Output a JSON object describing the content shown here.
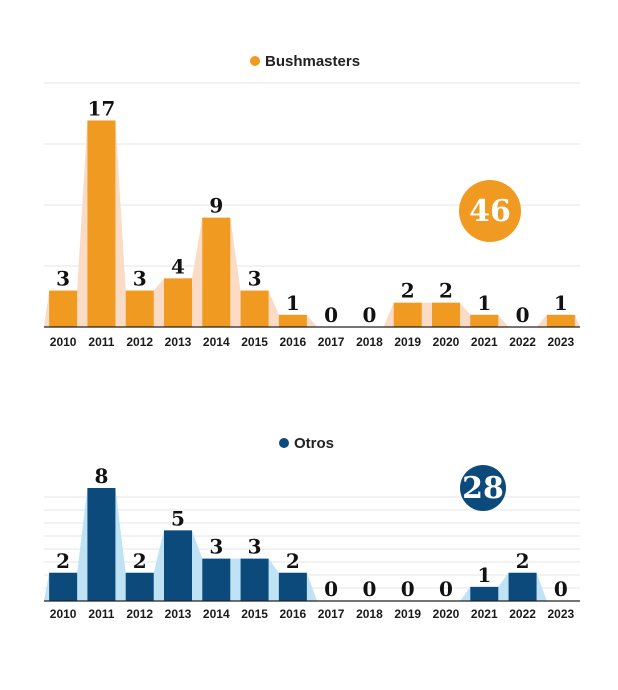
{
  "chart_data": [
    {
      "type": "bar",
      "legend": "Bushmasters",
      "total": "46",
      "color": "#f09a22",
      "area_color": "#fadcc6",
      "categories": [
        "2010",
        "2011",
        "2012",
        "2013",
        "2014",
        "2015",
        "2016",
        "2017",
        "2018",
        "2019",
        "2020",
        "2021",
        "2022",
        "2023"
      ],
      "values": [
        3,
        17,
        3,
        4,
        9,
        3,
        1,
        0,
        0,
        2,
        2,
        1,
        0,
        1
      ],
      "ylim": [
        0,
        20
      ],
      "grid": true,
      "legend_position": "top-center"
    },
    {
      "type": "bar",
      "legend": "Otros",
      "total": "28",
      "color": "#0d4a7c",
      "area_color": "#bfe3f4",
      "categories": [
        "2010",
        "2011",
        "2012",
        "2013",
        "2014",
        "2015",
        "2016",
        "2017",
        "2018",
        "2019",
        "2020",
        "2021",
        "2022",
        "2023"
      ],
      "values": [
        2,
        8,
        2,
        5,
        3,
        3,
        2,
        0,
        0,
        0,
        0,
        1,
        2,
        0
      ],
      "ylim": [
        0,
        8
      ],
      "grid": true,
      "legend_position": "top-center"
    }
  ]
}
